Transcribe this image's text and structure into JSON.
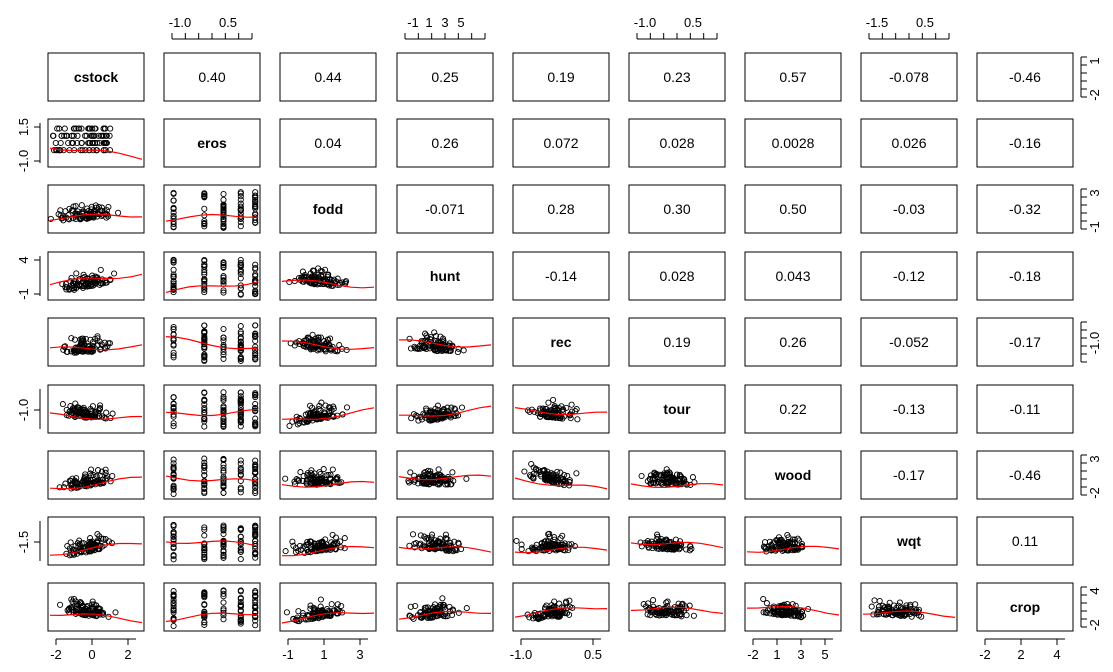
{
  "chart_data": {
    "type": "scatter",
    "kind": "pairs-scatterplot-matrix",
    "variables": [
      "cstock",
      "eros",
      "fodd",
      "hunt",
      "rec",
      "tour",
      "wood",
      "wqt",
      "crop"
    ],
    "correlations": [
      [
        null,
        "0.40",
        "0.44",
        "0.25",
        "0.19",
        "0.23",
        "0.57",
        "-0.078",
        "-0.46"
      ],
      [
        null,
        null,
        "0.04",
        "0.26",
        "0.072",
        "0.028",
        "0.0028",
        "0.026",
        "-0.16"
      ],
      [
        null,
        null,
        null,
        "-0.071",
        "0.28",
        "0.30",
        "0.50",
        "-0.03",
        "-0.32"
      ],
      [
        null,
        null,
        null,
        null,
        "-0.14",
        "0.028",
        "0.043",
        "-0.12",
        "-0.18"
      ],
      [
        null,
        null,
        null,
        null,
        null,
        "0.19",
        "0.26",
        "-0.052",
        "-0.17"
      ],
      [
        null,
        null,
        null,
        null,
        null,
        null,
        "0.22",
        "-0.13",
        "-0.11"
      ],
      [
        null,
        null,
        null,
        null,
        null,
        null,
        null,
        "-0.17",
        "-0.46"
      ],
      [
        null,
        null,
        null,
        null,
        null,
        null,
        null,
        null,
        "0.11"
      ],
      [
        null,
        null,
        null,
        null,
        null,
        null,
        null,
        null,
        null
      ]
    ],
    "axis_ticks": {
      "top": [
        {
          "col": 1,
          "labels": [
            "-1.0",
            "0.5"
          ]
        },
        {
          "col": 3,
          "labels": [
            "-1",
            "1",
            "3",
            "5"
          ]
        },
        {
          "col": 5,
          "labels": [
            "-1.0",
            "0.5"
          ]
        },
        {
          "col": 7,
          "labels": [
            "-1.5",
            "0.5"
          ]
        }
      ],
      "bottom": [
        {
          "col": 0,
          "labels": [
            "-2",
            "0",
            "2"
          ]
        },
        {
          "col": 2,
          "labels": [
            "-1",
            "1",
            "3"
          ]
        },
        {
          "col": 4,
          "labels": [
            "-1.0",
            "0.5"
          ]
        },
        {
          "col": 6,
          "labels": [
            "-2",
            "1",
            "3",
            "5"
          ]
        },
        {
          "col": 8,
          "labels": [
            "-2",
            "2",
            "4"
          ]
        }
      ],
      "left": [
        {
          "row": 1,
          "labels": [
            "-1.0",
            "1.5"
          ]
        },
        {
          "row": 3,
          "labels": [
            "-1",
            "4"
          ]
        },
        {
          "row": 5,
          "labels": [
            "-1.0"
          ]
        },
        {
          "row": 7,
          "labels": [
            "-1.5"
          ]
        }
      ],
      "right": [
        {
          "row": 0,
          "labels": [
            "-2",
            "1"
          ]
        },
        {
          "row": 2,
          "labels": [
            "-1",
            "3"
          ]
        },
        {
          "row": 4,
          "labels": [
            "-1.0"
          ]
        },
        {
          "row": 6,
          "labels": [
            "-2",
            "3"
          ]
        },
        {
          "row": 8,
          "labels": [
            "-2",
            "4"
          ]
        }
      ]
    },
    "point_color": "#000000",
    "smooth_line_color": "#ff0000",
    "grid": false,
    "legend": "none"
  }
}
